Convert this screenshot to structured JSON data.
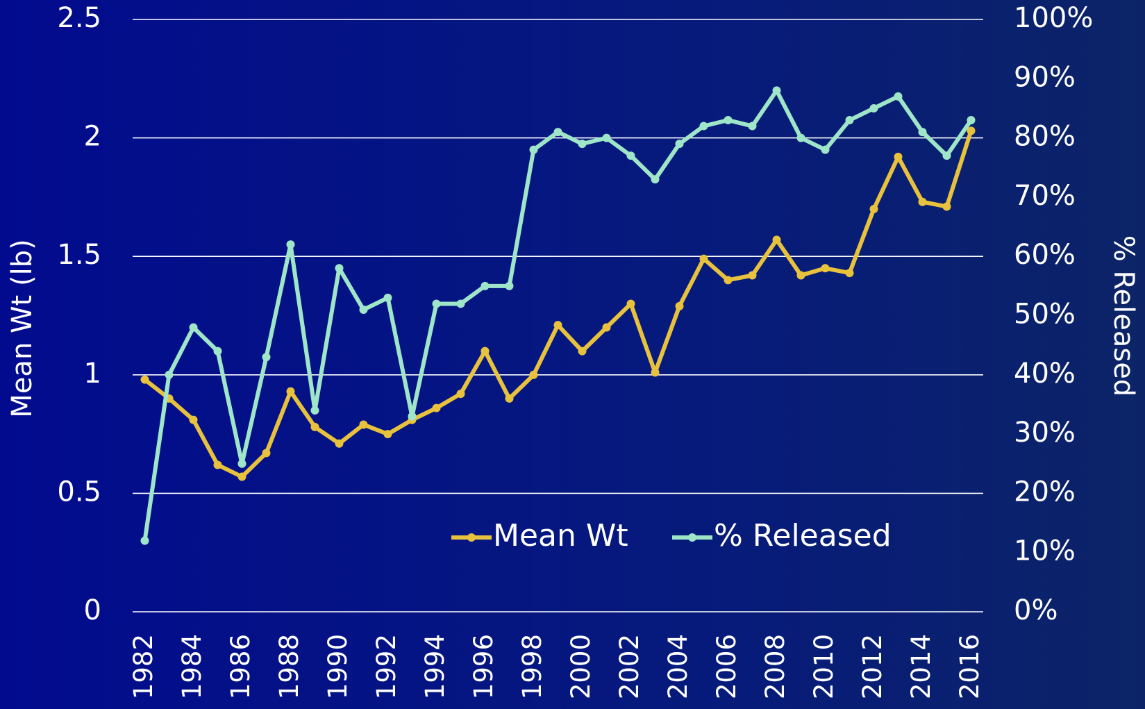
{
  "chart_data": {
    "type": "line",
    "categories": [
      "1982",
      null,
      "1984",
      null,
      "1986",
      null,
      "1988",
      null,
      "1990",
      null,
      "1992",
      null,
      "1994",
      null,
      "1996",
      null,
      "1998",
      null,
      "2000",
      null,
      "2002",
      null,
      "2004",
      null,
      "2006",
      null,
      "2008",
      null,
      "2010",
      null,
      "2012",
      null,
      "2014",
      null,
      "2016"
    ],
    "y_label": "Mean Wt (lb)",
    "y2_label": "% Released",
    "ylim": [
      0,
      2.5
    ],
    "yticks": [
      0,
      0.5,
      1,
      1.5,
      2,
      2.5
    ],
    "y2lim": [
      0,
      100
    ],
    "y2ticks": [
      {
        "value": 0,
        "label": "0%"
      },
      {
        "value": 10,
        "label": "10%"
      },
      {
        "value": 20,
        "label": "20%"
      },
      {
        "value": 30,
        "label": "30%"
      },
      {
        "value": 40,
        "label": "40%"
      },
      {
        "value": 50,
        "label": "50%"
      },
      {
        "value": 60,
        "label": "60%"
      },
      {
        "value": 70,
        "label": "70%"
      },
      {
        "value": 80,
        "label": "80%"
      },
      {
        "value": 90,
        "label": "90%"
      },
      {
        "value": 100,
        "label": "100%"
      }
    ],
    "grid": true,
    "series": [
      {
        "name": "Mean Wt",
        "color": "#e8c23c",
        "values": [
          0.98,
          0.9,
          0.81,
          0.62,
          0.57,
          0.67,
          0.93,
          0.78,
          0.71,
          0.79,
          0.75,
          0.81,
          0.86,
          0.92,
          1.1,
          0.9,
          1.0,
          1.21,
          1.1,
          1.2,
          1.3,
          1.01,
          1.29,
          1.49,
          1.4,
          1.42,
          1.57,
          1.42,
          1.45,
          1.43,
          1.7,
          1.92,
          1.73,
          1.71,
          2.03
        ]
      },
      {
        "name": "% Released",
        "color": "#9fe6c9",
        "axis": "y2",
        "values": [
          12,
          40,
          48,
          44,
          25,
          43,
          62,
          34,
          58,
          51,
          53,
          33,
          52,
          52,
          55,
          55,
          78,
          81,
          79,
          80,
          77,
          73,
          79,
          82,
          83,
          82,
          88,
          80,
          78,
          83,
          85,
          87,
          81,
          77,
          83
        ]
      }
    ]
  }
}
